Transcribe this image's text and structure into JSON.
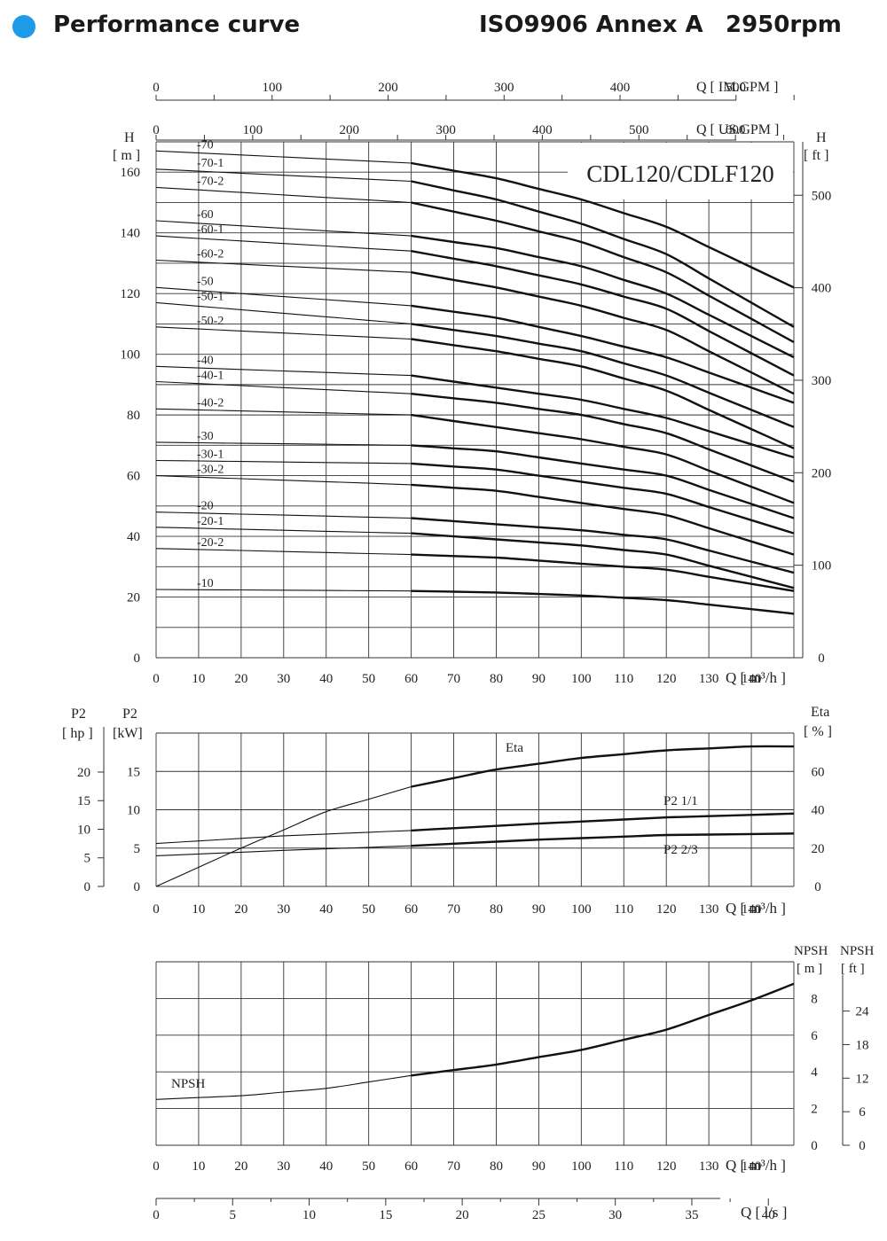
{
  "header": {
    "title": "Performance curve",
    "standard": "ISO9906 Annex A",
    "speed": "2950rpm",
    "accent_color": "#1e9be6",
    "bullet_icon": "blue-circle-bullet"
  },
  "chart_data": [
    {
      "type": "line",
      "title": "CDL120/CDLF120",
      "xlabel": "Q [ m³/h ]",
      "ylabel": "H [ m ]",
      "ylabel_right": "H [ ft ]",
      "xlim": [
        0,
        150
      ],
      "ylim": [
        0,
        170
      ],
      "xticks": [
        0,
        10,
        20,
        30,
        40,
        50,
        60,
        70,
        80,
        90,
        100,
        110,
        120,
        130,
        140
      ],
      "yticks": [
        0,
        20,
        40,
        60,
        80,
        100,
        120,
        140,
        160
      ],
      "right_axis": {
        "label": "H [ ft ]",
        "ticks": [
          0,
          100,
          200,
          300,
          400,
          500
        ]
      },
      "top_axes": [
        {
          "label": "Q [ US.GPM ]",
          "ticks": [
            0,
            100,
            200,
            300,
            400,
            500,
            600
          ]
        },
        {
          "label": "Q [ IM.GPM ]",
          "ticks": [
            0,
            100,
            200,
            300,
            400,
            500
          ]
        }
      ],
      "grid": true,
      "x": [
        0,
        60,
        80,
        100,
        120,
        150
      ],
      "series": [
        {
          "name": "-70",
          "values": [
            167,
            163,
            158,
            151,
            142,
            122
          ]
        },
        {
          "name": "-70-1",
          "values": [
            161,
            157,
            151,
            143,
            133,
            109
          ]
        },
        {
          "name": "-70-2",
          "values": [
            155,
            150,
            144,
            137,
            127,
            104
          ]
        },
        {
          "name": "-60",
          "values": [
            144,
            139,
            135,
            129,
            120,
            99
          ]
        },
        {
          "name": "-60-1",
          "values": [
            139,
            134,
            129,
            123,
            115,
            93
          ]
        },
        {
          "name": "-60-2",
          "values": [
            131,
            127,
            122,
            116,
            108,
            87
          ]
        },
        {
          "name": "-50",
          "values": [
            122,
            116,
            112,
            106,
            99,
            84
          ]
        },
        {
          "name": "-50-1",
          "values": [
            117,
            110,
            106,
            101,
            93,
            76
          ]
        },
        {
          "name": "-50-2",
          "values": [
            109,
            105,
            101,
            96,
            88,
            69
          ]
        },
        {
          "name": "-40",
          "values": [
            96,
            93,
            89,
            85,
            79,
            66
          ]
        },
        {
          "name": "-40-1",
          "values": [
            91,
            87,
            84,
            80,
            74,
            58
          ]
        },
        {
          "name": "-40-2",
          "values": [
            82,
            80,
            76,
            72,
            67,
            51
          ]
        },
        {
          "name": "-30",
          "values": [
            71,
            70,
            68,
            64,
            60,
            46
          ]
        },
        {
          "name": "-30-1",
          "values": [
            65,
            64,
            62,
            58,
            54,
            41
          ]
        },
        {
          "name": "-30-2",
          "values": [
            60,
            57,
            55,
            51,
            47,
            34
          ]
        },
        {
          "name": "-20",
          "values": [
            48,
            46,
            44,
            42,
            39,
            28
          ]
        },
        {
          "name": "-20-1",
          "values": [
            43,
            41,
            39,
            37,
            34,
            23
          ]
        },
        {
          "name": "-20-2",
          "values": [
            36,
            34,
            33,
            31,
            29,
            22
          ]
        },
        {
          "name": "-10",
          "values": [
            22.5,
            22,
            21.5,
            20.5,
            19,
            14.5
          ]
        }
      ]
    },
    {
      "type": "line",
      "xlabel": "Q [ m³/h ]",
      "ylabel": "P2 [kW]",
      "ylabel_hp": "P2 [ hp ]",
      "ylabel_right": "Eta [ % ]",
      "xlim": [
        0,
        150
      ],
      "ylim": [
        0,
        20
      ],
      "xticks": [
        0,
        10,
        20,
        30,
        40,
        50,
        60,
        70,
        80,
        90,
        100,
        110,
        120,
        130,
        140
      ],
      "yticks": [
        0,
        5,
        10,
        15
      ],
      "hp_ticks": [
        0,
        5,
        10,
        15,
        20
      ],
      "eta_ticks": [
        0,
        20,
        40,
        60
      ],
      "grid": true,
      "series": [
        {
          "name": "Eta",
          "axis": "eta",
          "x": [
            0,
            20,
            40,
            60,
            80,
            100,
            120,
            140,
            150
          ],
          "values": [
            0,
            20,
            39,
            52,
            61,
            67,
            71,
            73,
            73
          ]
        },
        {
          "name": "P2 1/1",
          "axis": "kw",
          "x": [
            0,
            30,
            60,
            90,
            120,
            150
          ],
          "values": [
            5.6,
            6.6,
            7.3,
            8.2,
            9.0,
            9.5
          ]
        },
        {
          "name": "P2 2/3",
          "axis": "kw",
          "x": [
            0,
            30,
            60,
            90,
            120,
            150
          ],
          "values": [
            4.0,
            4.7,
            5.3,
            6.1,
            6.7,
            6.9
          ]
        }
      ]
    },
    {
      "type": "line",
      "xlabel": "Q [ m³/h ]",
      "xlabel_ls": "Q [ l/s ]",
      "ylabel_right": "NPSH [ m ]",
      "ylabel_ft": "NPSH [ ft ]",
      "xlim": [
        0,
        150
      ],
      "ylim": [
        0,
        10
      ],
      "xticks": [
        0,
        10,
        20,
        30,
        40,
        50,
        60,
        70,
        80,
        90,
        100,
        110,
        120,
        130,
        140
      ],
      "yticks": [
        0,
        2,
        4,
        6,
        8
      ],
      "ft_ticks": [
        0,
        6,
        12,
        18,
        24
      ],
      "ls_ticks": [
        0,
        5,
        10,
        15,
        20,
        25,
        30,
        35,
        40
      ],
      "grid": true,
      "series": [
        {
          "name": "NPSH",
          "x": [
            0,
            20,
            40,
            60,
            80,
            100,
            120,
            140,
            150
          ],
          "values": [
            2.5,
            2.7,
            3.1,
            3.8,
            4.4,
            5.2,
            6.3,
            7.9,
            8.8
          ]
        }
      ]
    }
  ]
}
